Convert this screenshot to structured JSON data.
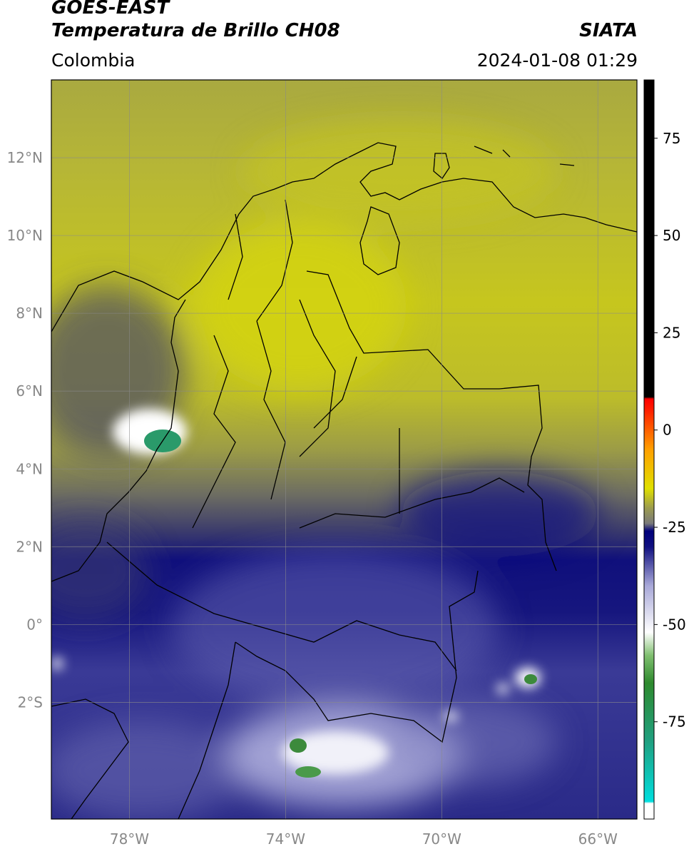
{
  "header": {
    "satellite": "GOES-EAST",
    "product": "Temperatura de Brillo CH08",
    "region": "Colombia",
    "organization": "SIATA",
    "timestamp": "2024-01-08 01:29"
  },
  "map": {
    "lon_range": [
      -80,
      -65
    ],
    "lat_range": [
      -5,
      14
    ],
    "lat_ticks": [
      {
        "value": 12,
        "label": "12°N"
      },
      {
        "value": 10,
        "label": "10°N"
      },
      {
        "value": 8,
        "label": "8°N"
      },
      {
        "value": 6,
        "label": "6°N"
      },
      {
        "value": 4,
        "label": "4°N"
      },
      {
        "value": 2,
        "label": "2°N"
      },
      {
        "value": 0,
        "label": "0°"
      },
      {
        "value": -2,
        "label": "2°S"
      }
    ],
    "lon_ticks": [
      {
        "value": -78,
        "label": "78°W"
      },
      {
        "value": -74,
        "label": "74°W"
      },
      {
        "value": -70,
        "label": "70°W"
      },
      {
        "value": -66,
        "label": "66°W"
      }
    ],
    "grid": true
  },
  "colorbar": {
    "range": [
      -100,
      90
    ],
    "ticks": [
      {
        "value": 75,
        "label": "75"
      },
      {
        "value": 50,
        "label": "50"
      },
      {
        "value": 25,
        "label": "25"
      },
      {
        "value": 0,
        "label": "0"
      },
      {
        "value": -25,
        "label": "-25"
      },
      {
        "value": -50,
        "label": "-50"
      },
      {
        "value": -75,
        "label": "-75"
      }
    ],
    "stops": [
      {
        "value": -100,
        "color": "#ffffff"
      },
      {
        "value": -96,
        "color": "#ffffff"
      },
      {
        "value": -95.5,
        "color": "#00dede"
      },
      {
        "value": -80,
        "color": "#20a080"
      },
      {
        "value": -65,
        "color": "#2e8a2e"
      },
      {
        "value": -58,
        "color": "#7fbf6f"
      },
      {
        "value": -52,
        "color": "#ffffff"
      },
      {
        "value": -40,
        "color": "#a8a8d8"
      },
      {
        "value": -30,
        "color": "#101080"
      },
      {
        "value": -26,
        "color": "#00007a"
      },
      {
        "value": -24,
        "color": "#7a7a7a"
      },
      {
        "value": -20,
        "color": "#9c9c4e"
      },
      {
        "value": -15,
        "color": "#e0e000"
      },
      {
        "value": -5,
        "color": "#ffa000"
      },
      {
        "value": 5,
        "color": "#ff2000"
      },
      {
        "value": 8,
        "color": "#ff0000"
      },
      {
        "value": 8.5,
        "color": "#000000"
      },
      {
        "value": 90,
        "color": "#000000"
      }
    ]
  }
}
